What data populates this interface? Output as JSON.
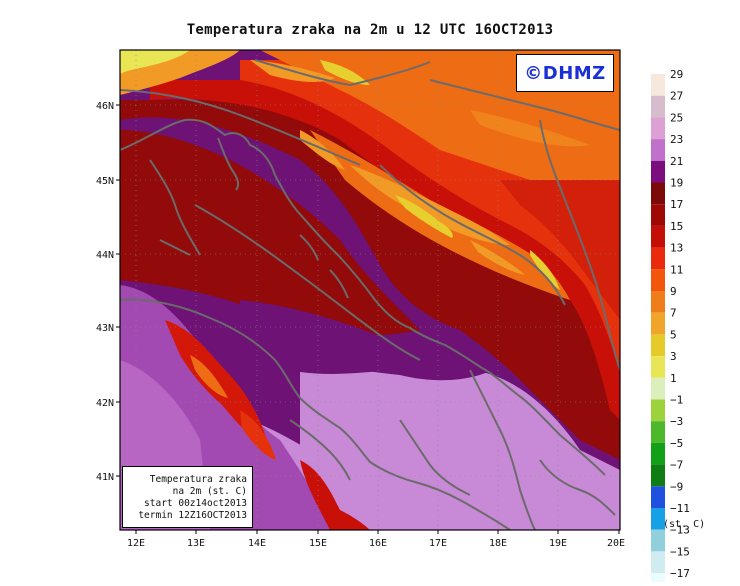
{
  "title": "Temperatura zraka na 2m u 12 UTC 16OCT2013",
  "logo_text": "©DHMZ",
  "info": {
    "line1": "Temperatura zraka",
    "line2": "na 2m (st. C)",
    "line3": "start 00z14oct2013",
    "line4": "termin 12Z16OCT2013"
  },
  "unit_label": "(st. C)",
  "lat_ticks": [
    "46N",
    "45N",
    "44N",
    "43N",
    "42N",
    "41N"
  ],
  "lon_ticks": [
    "12E",
    "13E",
    "14E",
    "15E",
    "16E",
    "17E",
    "18E",
    "19E",
    "20E"
  ],
  "legend": {
    "labels": [
      "29",
      "27",
      "25",
      "23",
      "21",
      "19",
      "17",
      "15",
      "13",
      "11",
      "9",
      "7",
      "5",
      "3",
      "1",
      "−1",
      "−3",
      "−5",
      "−7",
      "−9",
      "−11",
      "−13",
      "−15",
      "−17"
    ],
    "colors": [
      "#f6e8dc",
      "#d7bccc",
      "#dca0d4",
      "#c071cc",
      "#7c0d7e",
      "#7c0a08",
      "#9e0906",
      "#c40f08",
      "#e92a0c",
      "#f3550c",
      "#ee7d1a",
      "#f0a52a",
      "#e6ca2a",
      "#e8e654",
      "#dceebc",
      "#9cd23a",
      "#4cb82a",
      "#12a018",
      "#107c14",
      "#2050e0",
      "#16a0e6",
      "#90d0dc",
      "#d0ecf0",
      "#eafcfc"
    ]
  },
  "colors": {
    "purple_dark": "#6e1276",
    "purple_mid": "#a24ab2",
    "lavender": "#c88ad6",
    "dark_red": "#920a0a",
    "red": "#c81008",
    "red_orange": "#e6320c",
    "orange": "#ee6d14",
    "light_orange": "#f29a26",
    "yellow": "#e8cf30",
    "coastline": "#6b6b6b"
  }
}
